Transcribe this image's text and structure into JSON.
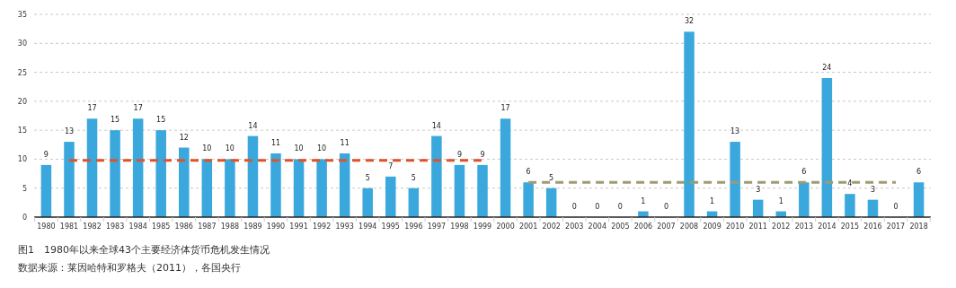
{
  "chart_data": {
    "type": "bar",
    "categories": [
      "1980",
      "1981",
      "1982",
      "1983",
      "1984",
      "1985",
      "1986",
      "1987",
      "1988",
      "1989",
      "1990",
      "1991",
      "1992",
      "1993",
      "1994",
      "1995",
      "1996",
      "1997",
      "1998",
      "1999",
      "2000",
      "2001",
      "2002",
      "2003",
      "2004",
      "2005",
      "2006",
      "2007",
      "2008",
      "2009",
      "2010",
      "2011",
      "2012",
      "2013",
      "2014",
      "2015",
      "2016",
      "2017",
      "2018"
    ],
    "series": [
      {
        "color": "#3aa8dc",
        "values": [
          9,
          13,
          17,
          15,
          17,
          15,
          12,
          10,
          10,
          14,
          11,
          10,
          10,
          11,
          5,
          7,
          5,
          14,
          9,
          9,
          17,
          6,
          5,
          0,
          0,
          0,
          1,
          0,
          32,
          1,
          13,
          3,
          1,
          6,
          24,
          4,
          3,
          0,
          6
        ],
        "value_labels": [
          "9",
          "13",
          "17",
          "15",
          "17",
          "15",
          "12",
          "10",
          "10",
          "14",
          "11",
          "10",
          "10",
          "11",
          "5",
          "7",
          "5",
          "14",
          "9",
          "9",
          "17",
          "6",
          "5",
          "0",
          "0",
          "0",
          "1",
          "0",
          "32",
          "1",
          "13",
          "3",
          "1",
          "6",
          "24",
          "4",
          "3",
          "0",
          "6"
        ]
      },
      {
        "type": "line",
        "color": "#e0532a",
        "line_style": "dashed",
        "values": [
          null,
          9.8,
          9.8,
          9.8,
          9.8,
          9.8,
          9.8,
          9.8,
          9.8,
          9.8,
          9.8,
          9.8,
          9.8,
          9.8,
          9.8,
          9.8,
          9.8,
          9.8,
          9.8,
          9.8,
          null,
          null,
          null,
          null,
          null,
          null,
          null,
          null,
          null,
          null,
          null,
          null,
          null,
          null,
          null,
          null,
          null,
          null,
          null
        ]
      },
      {
        "type": "line",
        "color": "#a09a70",
        "line_style": "dashed",
        "values": [
          null,
          null,
          null,
          null,
          null,
          null,
          null,
          null,
          null,
          null,
          null,
          null,
          null,
          null,
          null,
          null,
          null,
          null,
          null,
          null,
          null,
          6,
          6,
          6,
          6,
          6,
          6,
          6,
          6,
          6,
          6,
          6,
          6,
          6,
          6,
          6,
          6,
          6,
          null
        ]
      }
    ],
    "ylim": [
      0,
      35
    ],
    "yticks": [
      0,
      5,
      10,
      15,
      20,
      25,
      30,
      35
    ],
    "grid": "y",
    "marker": "none",
    "annotations": [
      "图1　1980年以来全球43个主要经济体货币危机发生情况",
      "数据来源：莱因哈特和罗格夫（2011），各国央行"
    ]
  }
}
